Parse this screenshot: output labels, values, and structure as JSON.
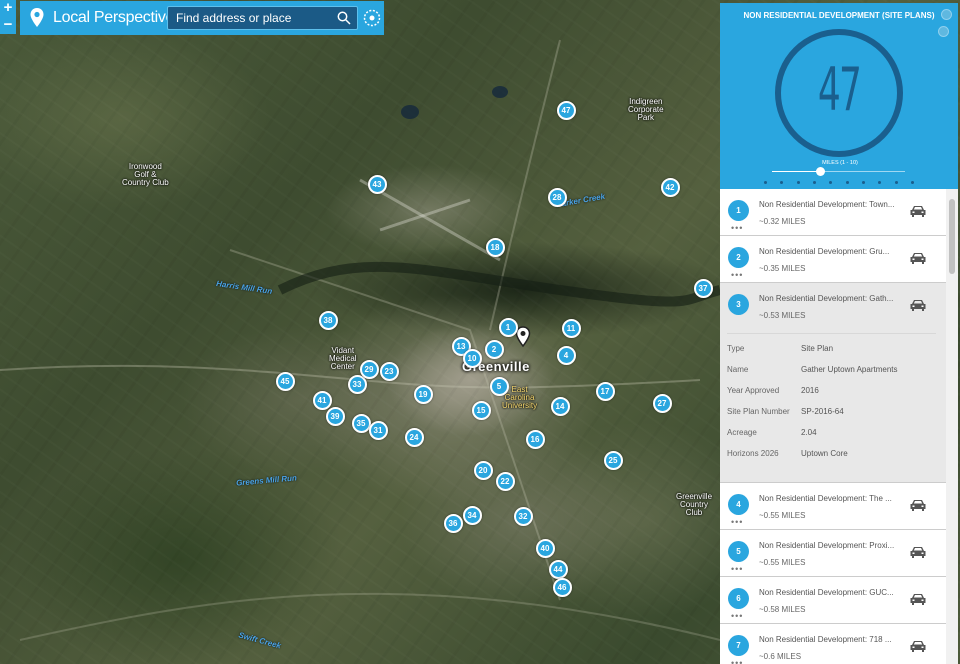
{
  "app": {
    "title": "Local Perspective"
  },
  "search": {
    "placeholder": "Find address or place"
  },
  "zoom": {
    "in": "+",
    "out": "−"
  },
  "map": {
    "place_labels": [
      {
        "name": "ironwood-label",
        "text": "Ironwood\nGolf &\nCountry Club"
      },
      {
        "name": "indigreen-label",
        "text": "Indigreen\nCorporate\nPark"
      },
      {
        "name": "vidant-label",
        "text": "Vidant\nMedical\nCenter"
      },
      {
        "name": "greenville-cc-label",
        "text": "Greenville\nCountry\nClub"
      }
    ],
    "water_labels": [
      "Harris Mill Run",
      "Parker Creek",
      "Greens Mill Run",
      "Swift Creek"
    ],
    "city_label": "Greenville",
    "university_label": "East\nCarolina\nUniversity",
    "markers": [
      "47",
      "43",
      "42",
      "28",
      "18",
      "37",
      "38",
      "1",
      "11",
      "13",
      "2",
      "10",
      "4",
      "45",
      "33",
      "29",
      "23",
      "5",
      "17",
      "27",
      "41",
      "19",
      "15",
      "14",
      "39",
      "35",
      "31",
      "24",
      "16",
      "25",
      "20",
      "22",
      "36",
      "34",
      "32",
      "40",
      "44",
      "46"
    ]
  },
  "panel": {
    "title": "NON RESIDENTIAL DEVELOPMENT (SITE PLANS)",
    "count": "47",
    "slider_label": "MILES (1 - 10)",
    "slider_value": 1,
    "slider_range": [
      1,
      10
    ],
    "items": [
      {
        "num": "1",
        "name": "Non Residential Development: Town...",
        "dist": "~0.32 MILES"
      },
      {
        "num": "2",
        "name": "Non Residential Development: Gru...",
        "dist": "~0.35 MILES"
      },
      {
        "num": "3",
        "name": "Non Residential Development: Gath...",
        "dist": "~0.53 MILES"
      },
      {
        "num": "4",
        "name": "Non Residential Development: The ...",
        "dist": "~0.55 MILES"
      },
      {
        "num": "5",
        "name": "Non Residential Development: Proxi...",
        "dist": "~0.55 MILES"
      },
      {
        "num": "6",
        "name": "Non Residential Development: GUC...",
        "dist": "~0.58 MILES"
      },
      {
        "num": "7",
        "name": "Non Residential Development: 718 ...",
        "dist": "~0.6 MILES"
      }
    ],
    "expanded_details": [
      {
        "label": "Type",
        "value": "Site Plan"
      },
      {
        "label": "Name",
        "value": "Gather Uptown Apartments"
      },
      {
        "label": "Year Approved",
        "value": "2016"
      },
      {
        "label": "Site Plan Number",
        "value": "SP-2016-64"
      },
      {
        "label": "Acreage",
        "value": "2.04"
      },
      {
        "label": "Horizons 2026",
        "value": "Uptown Core"
      }
    ]
  },
  "colors": {
    "accent": "#2aa6df",
    "dark_accent": "#1a5f8e",
    "university": "#f5d76e",
    "water": "#4aa3e6"
  }
}
